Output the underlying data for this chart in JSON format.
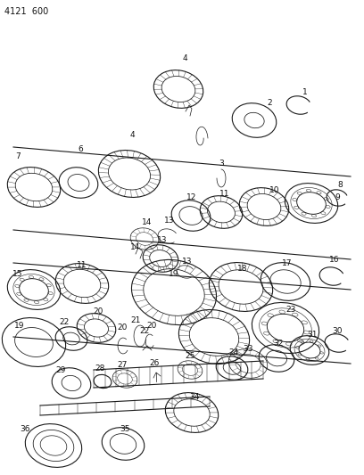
{
  "title": "4121  600",
  "bg_color": "#ffffff",
  "line_color": "#1a1a1a",
  "label_color": "#111111",
  "label_fontsize": 6.5,
  "title_fontsize": 7,
  "fig_width": 4.08,
  "fig_height": 5.33,
  "dpi": 100
}
